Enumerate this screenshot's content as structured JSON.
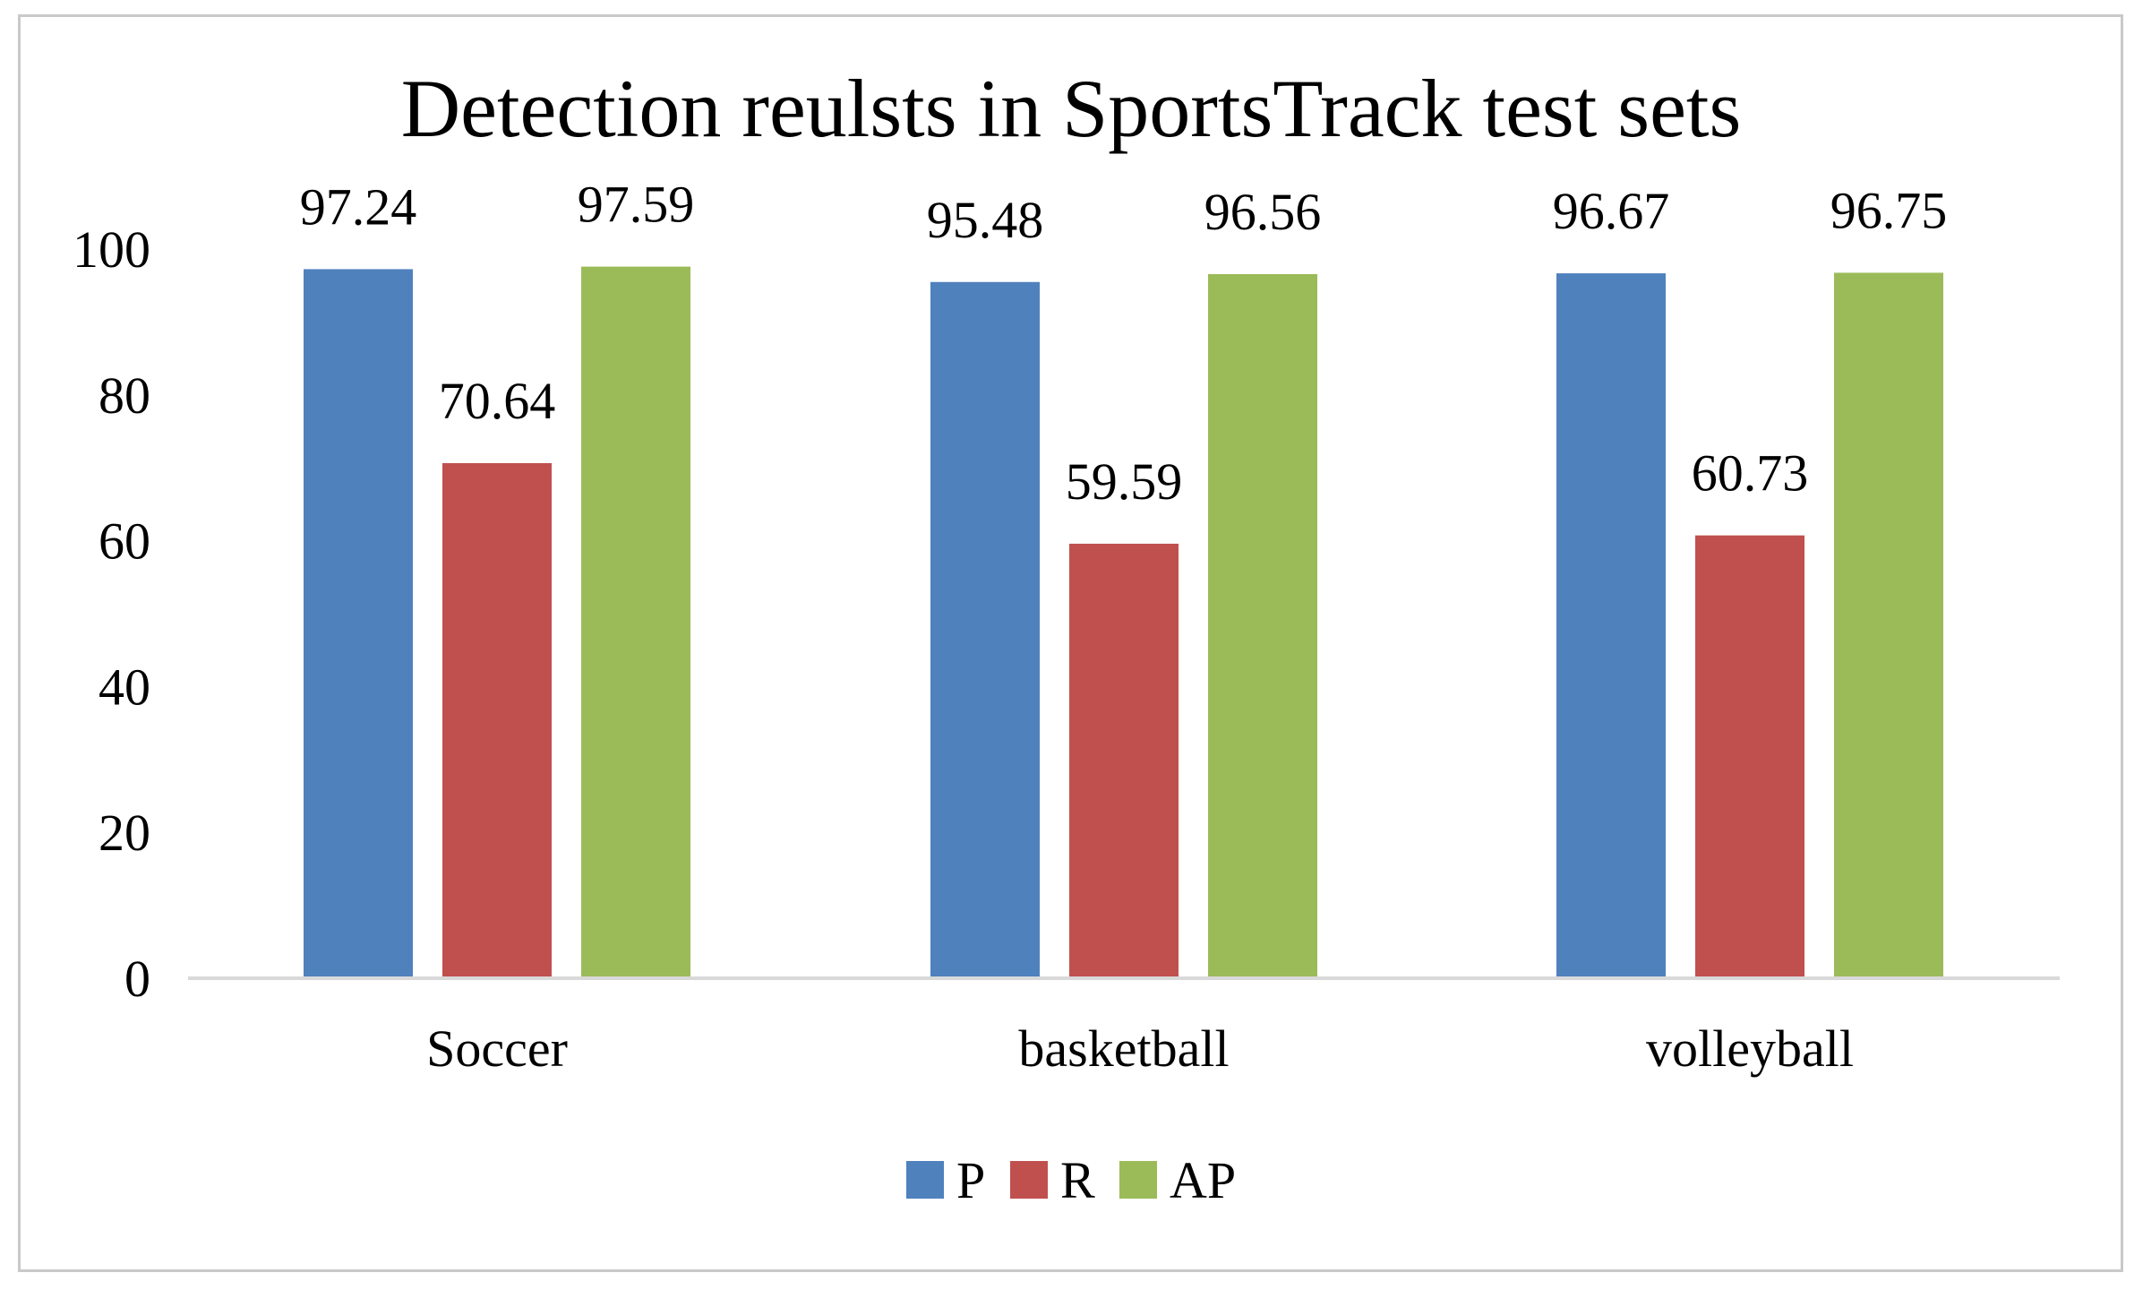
{
  "chart_data": {
    "type": "bar",
    "title": "Detection reulsts in SportsTrack test sets",
    "xlabel": "",
    "ylabel": "",
    "ylim": [
      0,
      100
    ],
    "yticks": [
      0,
      20,
      40,
      60,
      80,
      100
    ],
    "ytick_labels": [
      "0",
      "20",
      "40",
      "60",
      "80",
      "100"
    ],
    "grid": false,
    "legend_position": "bottom-center",
    "categories": [
      "Soccer",
      "basketball",
      "volleyball"
    ],
    "series": [
      {
        "name": "P",
        "color": "#4f81bd",
        "values": [
          97.24,
          95.48,
          96.67
        ],
        "labels": [
          "97.24",
          "95.48",
          "96.67"
        ]
      },
      {
        "name": "R",
        "color": "#c0504d",
        "values": [
          70.64,
          59.59,
          60.73
        ],
        "labels": [
          "70.64",
          "59.59",
          "60.73"
        ]
      },
      {
        "name": "AP",
        "color": "#9bbb59",
        "values": [
          97.59,
          96.56,
          96.75
        ],
        "labels": [
          "97.59",
          "96.56",
          "96.75"
        ]
      }
    ]
  },
  "colors": {
    "axis_line": "#d9d9d9",
    "frame_border": "#c9c9c9"
  }
}
